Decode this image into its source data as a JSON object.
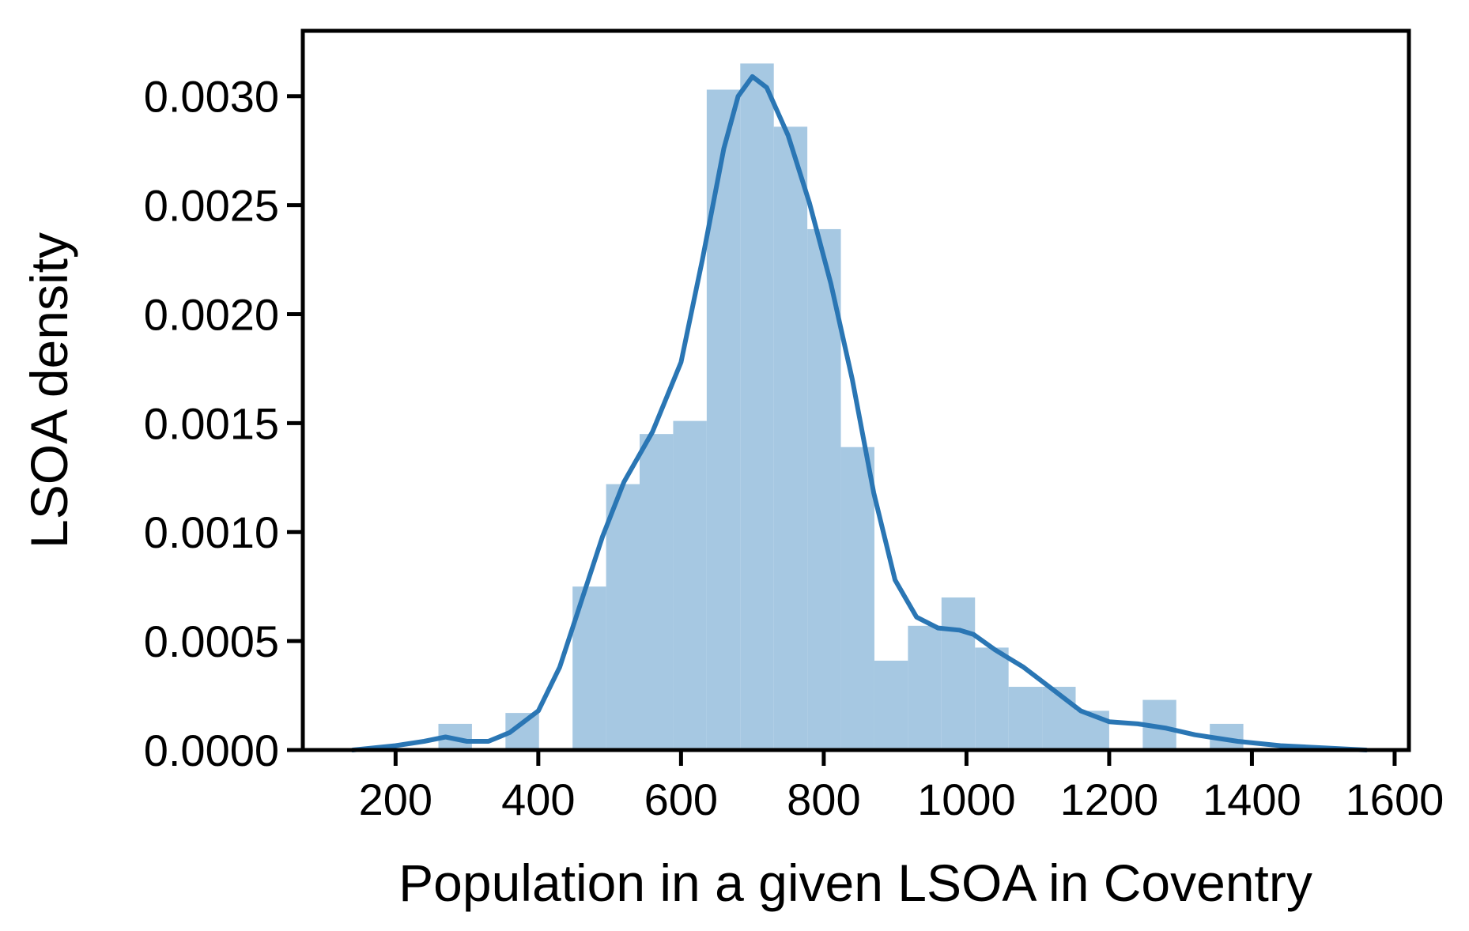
{
  "chart_data": {
    "type": "histogram",
    "title": "",
    "xlabel": "Population in a given LSOA in Coventry",
    "ylabel": "LSOA density",
    "xlim": [
      70,
      1620
    ],
    "ylim": [
      0,
      0.0033
    ],
    "xticks": [
      200,
      400,
      600,
      800,
      1000,
      1200,
      1400,
      1600
    ],
    "xtick_labels": [
      "200",
      "400",
      "600",
      "800",
      "1000",
      "1200",
      "1400",
      "1600"
    ],
    "yticks": [
      0,
      0.0005,
      0.001,
      0.0015,
      0.002,
      0.0025,
      0.003
    ],
    "ytick_labels": [
      "0.0000",
      "0.0005",
      "0.0010",
      "0.0015",
      "0.0020",
      "0.0025",
      "0.0030"
    ],
    "grid": false,
    "histogram": {
      "bin_edges": [
        260,
        307,
        354,
        401,
        448,
        495,
        542,
        589,
        636,
        683,
        730,
        777,
        824,
        871,
        918,
        965,
        1012,
        1059,
        1106,
        1153,
        1200,
        1247,
        1294,
        1341,
        1388
      ],
      "density": [
        0.00012,
        0,
        0.00017,
        0,
        0.00075,
        0.00122,
        0.00145,
        0.00151,
        0.00303,
        0.00315,
        0.00286,
        0.00239,
        0.00139,
        0.00041,
        0.00057,
        0.0007,
        0.00047,
        0.00029,
        0.00029,
        0.00018,
        0,
        0.00023,
        0,
        0.00012
      ],
      "color": "#a6c8e2"
    },
    "kde": {
      "x": [
        140,
        200,
        240,
        270,
        300,
        330,
        360,
        400,
        430,
        460,
        490,
        520,
        560,
        600,
        630,
        660,
        680,
        700,
        720,
        750,
        780,
        810,
        840,
        870,
        900,
        930,
        960,
        990,
        1010,
        1040,
        1080,
        1120,
        1160,
        1200,
        1240,
        1280,
        1320,
        1380,
        1440,
        1500,
        1560
      ],
      "y": [
        0,
        2e-05,
        4e-05,
        6e-05,
        4e-05,
        4e-05,
        8e-05,
        0.00018,
        0.00038,
        0.00068,
        0.00098,
        0.00123,
        0.00146,
        0.00178,
        0.00225,
        0.00276,
        0.003,
        0.00309,
        0.00304,
        0.00282,
        0.00251,
        0.00214,
        0.0017,
        0.00118,
        0.00078,
        0.00061,
        0.00056,
        0.00055,
        0.00053,
        0.00046,
        0.00038,
        0.00028,
        0.00018,
        0.00013,
        0.00012,
        0.0001,
        7e-05,
        4e-05,
        2e-05,
        1e-05,
        0
      ],
      "color": "#2a76b4"
    }
  }
}
